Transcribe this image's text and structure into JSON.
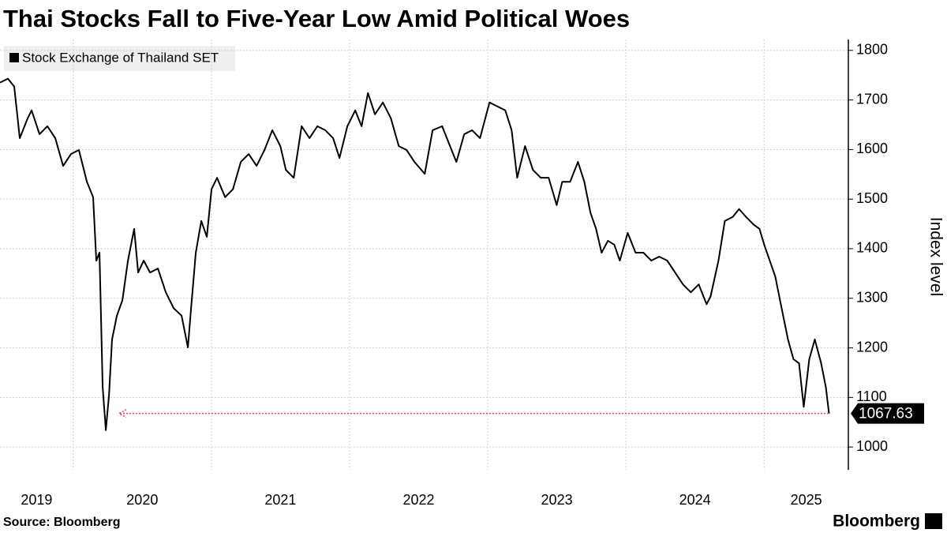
{
  "chart_data": {
    "type": "line",
    "title": "Thai Stocks Fall to Five-Year Low Amid Political Woes",
    "y_label": "Index level",
    "source": "Source: Bloomberg",
    "brand": "Bloomberg",
    "legend": "upper left",
    "grid": true,
    "xlim": [
      2019.47,
      2025.61
    ],
    "xticks": [
      {
        "value": 2019,
        "label": "2019"
      },
      {
        "value": 2020,
        "label": "2020"
      },
      {
        "value": 2021,
        "label": "2021"
      },
      {
        "value": 2022,
        "label": "2022"
      },
      {
        "value": 2023,
        "label": "2023"
      },
      {
        "value": 2024,
        "label": "2024"
      },
      {
        "value": 2025,
        "label": "2025"
      }
    ],
    "ylim": [
      954,
      1822
    ],
    "yticks": [
      1000,
      1100,
      1200,
      1300,
      1400,
      1500,
      1600,
      1700,
      1800
    ],
    "x": [
      2019.47,
      2019.527,
      2019.573,
      2019.613,
      2019.67,
      2019.699,
      2019.756,
      2019.813,
      2019.87,
      2019.927,
      2019.984,
      2020.041,
      2020.099,
      2020.144,
      2020.167,
      2020.19,
      2020.213,
      2020.236,
      2020.259,
      2020.281,
      2020.316,
      2020.356,
      2020.396,
      2020.441,
      2020.47,
      2020.51,
      2020.556,
      2020.613,
      2020.67,
      2020.727,
      2020.784,
      2020.83,
      2020.853,
      2020.887,
      2020.927,
      2020.967,
      2021.001,
      2021.041,
      2021.099,
      2021.156,
      2021.213,
      2021.27,
      2021.327,
      2021.384,
      2021.441,
      2021.499,
      2021.539,
      2021.596,
      2021.653,
      2021.71,
      2021.767,
      2021.824,
      2021.881,
      2021.927,
      2021.984,
      2022.041,
      2022.087,
      2022.133,
      2022.184,
      2022.241,
      2022.299,
      2022.356,
      2022.413,
      2022.47,
      2022.544,
      2022.601,
      2022.67,
      2022.727,
      2022.773,
      2022.83,
      2022.887,
      2022.944,
      2023.013,
      2023.07,
      2023.127,
      2023.173,
      2023.213,
      2023.27,
      2023.327,
      2023.384,
      2023.441,
      2023.499,
      2023.539,
      2023.596,
      2023.653,
      2023.699,
      2023.744,
      2023.784,
      2023.824,
      2023.87,
      2023.916,
      2023.956,
      2024.013,
      2024.07,
      2024.127,
      2024.184,
      2024.241,
      2024.299,
      2024.356,
      2024.413,
      2024.47,
      2024.527,
      2024.584,
      2024.613,
      2024.67,
      2024.716,
      2024.773,
      2024.819,
      2024.87,
      2024.927,
      2024.967,
      2025.001,
      2025.041,
      2025.081,
      2025.127,
      2025.173,
      2025.213,
      2025.253,
      2025.287,
      2025.327,
      2025.367,
      2025.413,
      2025.447,
      2025.47
    ],
    "series": [
      {
        "name": "Stock Exchange of Thailand SET",
        "color": "#000000",
        "values": [
          1735,
          1743,
          1727,
          1623,
          1663,
          1679,
          1631,
          1647,
          1623,
          1567,
          1591,
          1599,
          1535,
          1504,
          1376,
          1392,
          1121,
          1034,
          1105,
          1217,
          1265,
          1296,
          1376,
          1440,
          1352,
          1376,
          1352,
          1360,
          1312,
          1280,
          1265,
          1201,
          1280,
          1392,
          1456,
          1424,
          1520,
          1543,
          1504,
          1520,
          1575,
          1591,
          1567,
          1599,
          1639,
          1607,
          1559,
          1543,
          1647,
          1623,
          1647,
          1639,
          1623,
          1583,
          1647,
          1679,
          1647,
          1714,
          1671,
          1695,
          1663,
          1607,
          1599,
          1575,
          1551,
          1639,
          1647,
          1607,
          1575,
          1631,
          1639,
          1623,
          1695,
          1687,
          1679,
          1639,
          1543,
          1607,
          1559,
          1543,
          1543,
          1488,
          1535,
          1535,
          1575,
          1535,
          1472,
          1440,
          1392,
          1416,
          1408,
          1376,
          1432,
          1392,
          1392,
          1376,
          1384,
          1376,
          1352,
          1328,
          1312,
          1328,
          1288,
          1304,
          1376,
          1456,
          1464,
          1480,
          1464,
          1448,
          1440,
          1408,
          1376,
          1344,
          1280,
          1217,
          1177,
          1169,
          1081,
          1177,
          1217,
          1169,
          1121,
          1067.63
        ]
      }
    ]
  }
}
